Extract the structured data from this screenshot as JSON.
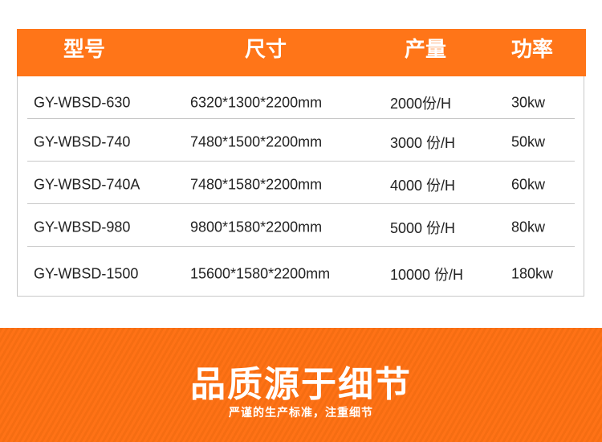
{
  "table": {
    "headers": [
      "型号",
      "尺寸",
      "产量",
      "功率"
    ],
    "rows": [
      [
        "GY-WBSD-630",
        "6320*1300*2200mm",
        "2000份/H",
        "30kw"
      ],
      [
        "GY-WBSD-740",
        "7480*1500*2200mm",
        "3000 份/H",
        "50kw"
      ],
      [
        "GY-WBSD-740A",
        "7480*1580*2200mm",
        "4000 份/H",
        "60kw"
      ],
      [
        "GY-WBSD-980",
        "9800*1580*2200mm",
        "5000 份/H",
        "80kw"
      ],
      [
        "GY-WBSD-1500",
        "15600*1580*2200mm",
        "10000 份/H",
        "180kw"
      ]
    ]
  },
  "banner": {
    "title": "品质源于细节",
    "subtitle": "严谨的生产标准，注重细节"
  },
  "colors": {
    "accent": "#ff7518"
  }
}
